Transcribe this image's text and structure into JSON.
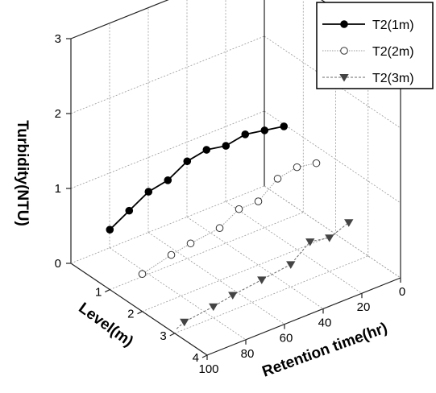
{
  "chart_data": {
    "type": "line",
    "projection": "3d",
    "title": "",
    "zlabel": "Turbidity(NTU)",
    "ylabel": "Level(m)",
    "xlabel": "Retention time(hr)",
    "zlim": [
      0,
      3
    ],
    "ylim": [
      1,
      4
    ],
    "xlim": [
      0,
      100
    ],
    "z_ticks": [
      "0",
      "1",
      "2",
      "3"
    ],
    "y_ticks": [
      "1",
      "2",
      "3",
      "4"
    ],
    "x_ticks": [
      "0",
      "20",
      "40",
      "60",
      "80",
      "100"
    ],
    "grid": true,
    "legend_position": "top-right",
    "series": [
      {
        "name": "T2(1m)",
        "level": 1,
        "marker": "filled-circle",
        "color": "#000000",
        "x": [
          100,
          90,
          80,
          70,
          60,
          50,
          40,
          30,
          20,
          10
        ],
        "z": [
          0.8,
          0.95,
          1.1,
          1.15,
          1.3,
          1.35,
          1.3,
          1.35,
          1.3,
          1.25
        ]
      },
      {
        "name": "T2(2m)",
        "level": 2,
        "marker": "open-circle",
        "color": "#888888",
        "x": [
          100,
          85,
          75,
          60,
          50,
          40,
          30,
          20,
          10
        ],
        "z": [
          0.5,
          0.6,
          0.65,
          0.7,
          0.85,
          0.85,
          1.05,
          1.1,
          1.05
        ]
      },
      {
        "name": "T2(3m)",
        "level": 3,
        "marker": "filled-triangle-down",
        "color": "#444444",
        "x": [
          95,
          80,
          70,
          55,
          40,
          30,
          20,
          10
        ],
        "z": [
          0.1,
          0.15,
          0.2,
          0.25,
          0.3,
          0.5,
          0.45,
          0.55
        ]
      }
    ]
  }
}
